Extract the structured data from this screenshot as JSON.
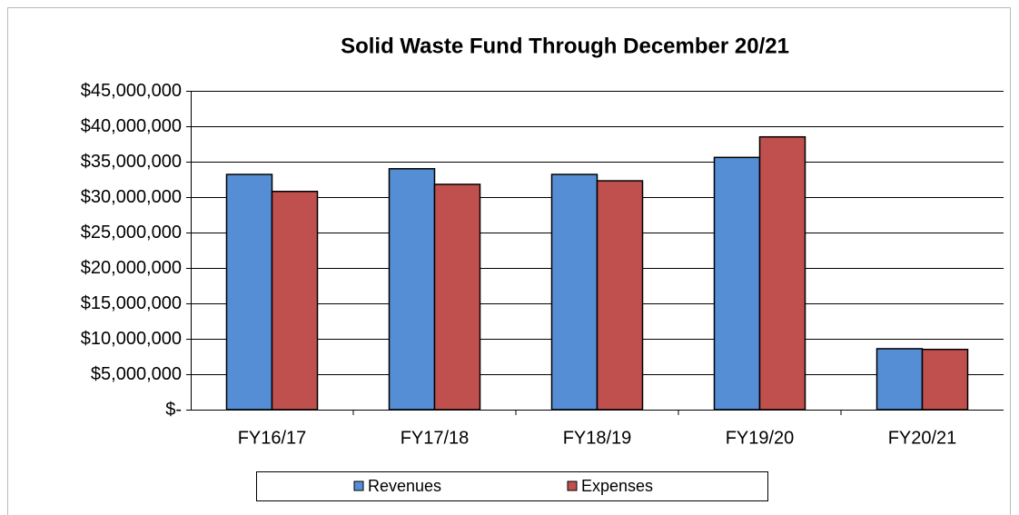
{
  "chart_data": {
    "type": "bar",
    "title": "Solid Waste Fund Through December 20/21",
    "categories": [
      "FY16/17",
      "FY17/18",
      "FY18/19",
      "FY19/20",
      "FY20/21"
    ],
    "series": [
      {
        "name": "Revenues",
        "color": "#558ed5",
        "values": [
          33200000,
          34000000,
          33200000,
          35600000,
          8600000
        ]
      },
      {
        "name": "Expenses",
        "color": "#c0504d",
        "values": [
          30800000,
          31800000,
          32300000,
          38500000,
          8500000
        ]
      }
    ],
    "ylim": [
      0,
      45000000
    ],
    "yticks": [
      {
        "value": 0,
        "label": "$-"
      },
      {
        "value": 5000000,
        "label": "$5,000,000"
      },
      {
        "value": 10000000,
        "label": "$10,000,000"
      },
      {
        "value": 15000000,
        "label": "$15,000,000"
      },
      {
        "value": 20000000,
        "label": "$20,000,000"
      },
      {
        "value": 25000000,
        "label": "$25,000,000"
      },
      {
        "value": 30000000,
        "label": "$30,000,000"
      },
      {
        "value": 35000000,
        "label": "$35,000,000"
      },
      {
        "value": 40000000,
        "label": "$40,000,000"
      },
      {
        "value": 45000000,
        "label": "$45,000,000"
      }
    ],
    "grid": true,
    "legend": "bottom"
  }
}
